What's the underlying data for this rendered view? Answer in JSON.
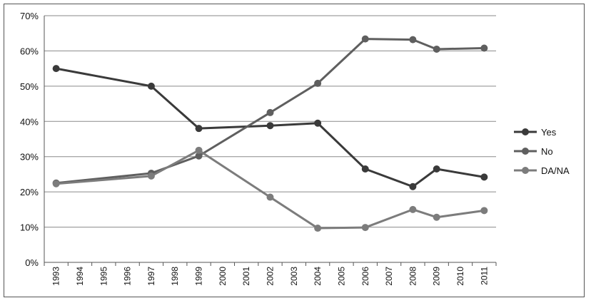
{
  "chart_data": {
    "type": "line",
    "title": "",
    "xlabel": "",
    "ylabel": "",
    "x": [
      "1993",
      "1994",
      "1995",
      "1996",
      "1997",
      "1998",
      "1999",
      "2000",
      "2001",
      "2002",
      "2003",
      "2004",
      "2005",
      "2006",
      "2007",
      "2008",
      "2009",
      "2010",
      "2011"
    ],
    "yticks": [
      "0%",
      "10%",
      "20%",
      "30%",
      "40%",
      "50%",
      "60%",
      "70%"
    ],
    "ylim": [
      0,
      70
    ],
    "grid": "horizontal",
    "legend_position": "right",
    "series": [
      {
        "name": "Yes",
        "color": "#3a3a3a",
        "points": [
          [
            1993,
            55
          ],
          [
            1997,
            50
          ],
          [
            1999,
            38
          ],
          [
            2002,
            38.8
          ],
          [
            2004,
            39.5
          ],
          [
            2006,
            26.5
          ],
          [
            2008,
            21.5
          ],
          [
            2009,
            26.5
          ],
          [
            2011,
            24.2
          ]
        ]
      },
      {
        "name": "No",
        "color": "#5f5f5f",
        "points": [
          [
            1993,
            22.5
          ],
          [
            1997,
            25.3
          ],
          [
            1999,
            30.2
          ],
          [
            2002,
            42.5
          ],
          [
            2004,
            50.8
          ],
          [
            2006,
            63.4
          ],
          [
            2008,
            63.2
          ],
          [
            2009,
            60.5
          ],
          [
            2011,
            60.8
          ]
        ]
      },
      {
        "name": "DA/NA",
        "color": "#7c7c7c",
        "points": [
          [
            1993,
            22.3
          ],
          [
            1997,
            24.5
          ],
          [
            1999,
            31.8
          ],
          [
            2002,
            18.5
          ],
          [
            2004,
            9.7
          ],
          [
            2006,
            9.9
          ],
          [
            2008,
            15
          ],
          [
            2009,
            12.8
          ],
          [
            2011,
            14.7
          ]
        ]
      }
    ]
  }
}
